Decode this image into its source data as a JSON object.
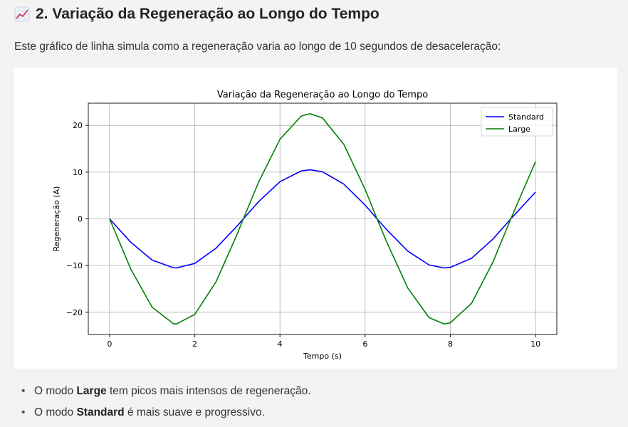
{
  "section": {
    "icon": "chart-increasing-icon",
    "title": "2. Variação da Regeneração ao Longo do Tempo",
    "intro": "Este gráfico de linha simula como a regeneração varia ao longo de 10 segundos de desaceleração:"
  },
  "bullets": [
    {
      "prefix": "O modo ",
      "bold": "Large",
      "suffix": " tem picos mais intensos de regeneração."
    },
    {
      "prefix": "O modo ",
      "bold": "Standard",
      "suffix": " é mais suave e progressivo."
    }
  ],
  "chart_data": {
    "type": "line",
    "title": "Variação da Regeneração ao Longo do Tempo",
    "xlabel": "Tempo (s)",
    "ylabel": "Regeneração (A)",
    "xlim": [
      -0.5,
      10.5
    ],
    "ylim": [
      -24.75,
      24.75
    ],
    "xticks": [
      0,
      2,
      4,
      6,
      8,
      10
    ],
    "yticks": [
      -20,
      -10,
      0,
      10,
      20
    ],
    "grid": true,
    "legend_position": "top-right",
    "x": [
      0,
      0.5,
      1,
      1.5,
      1.57,
      2,
      2.5,
      3,
      3.14,
      3.5,
      4,
      4.5,
      4.71,
      5,
      5.5,
      6,
      6.28,
      6.5,
      7,
      7.5,
      7.85,
      8,
      8.5,
      9,
      9.42,
      9.5,
      10
    ],
    "series": [
      {
        "name": "Standard",
        "color": "#0000ff",
        "values": [
          0,
          -5.03,
          -8.84,
          -10.47,
          -10.5,
          -9.55,
          -6.28,
          -1.48,
          0,
          3.68,
          7.95,
          10.26,
          10.5,
          10.07,
          7.44,
          2.93,
          0,
          -2.25,
          -6.9,
          -9.86,
          -10.5,
          -10.39,
          -8.43,
          -4.33,
          0,
          0.79,
          5.71
        ]
      },
      {
        "name": "Large",
        "color": "#008000",
        "values": [
          0,
          -10.79,
          -18.93,
          -22.44,
          -22.5,
          -20.46,
          -13.47,
          -3.18,
          0,
          7.89,
          17.03,
          21.99,
          22.5,
          21.58,
          15.94,
          6.29,
          0,
          -4.82,
          -14.78,
          -21.13,
          -22.5,
          -22.26,
          -18.07,
          -9.27,
          0,
          1.69,
          12.24
        ]
      }
    ]
  }
}
